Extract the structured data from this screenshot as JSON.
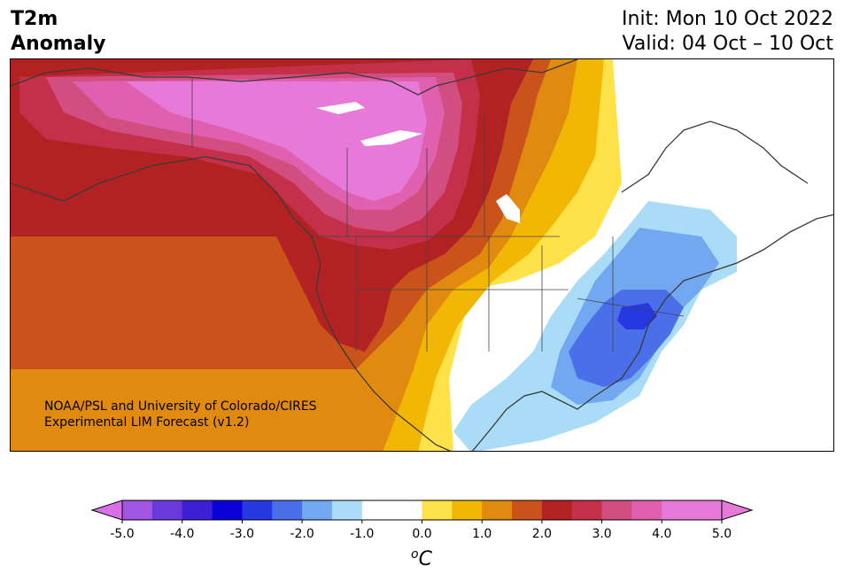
{
  "header": {
    "title_line1": "T2m",
    "title_line2": "Anomaly",
    "init_text": "Init: Mon 10 Oct 2022",
    "valid_text": "Valid: 04 Oct – 10 Oct"
  },
  "map": {
    "credit_line1": "NOAA/PSL and University of Colorado/CIRES",
    "credit_line2": "Experimental LIM Forecast (v1.2)"
  },
  "colorbar": {
    "unit_label": "°C",
    "unit_prefix": "o",
    "unit_letter": "C",
    "ticks": [
      "-5.0",
      "-4.0",
      "-3.0",
      "-2.0",
      "-1.0",
      "0.0",
      "1.0",
      "2.0",
      "3.0",
      "4.0",
      "5.0"
    ],
    "colors": {
      "minus5": "#d970e8",
      "minus45": "#a155e0",
      "minus4": "#6a3ad8",
      "minus35": "#3d1fd4",
      "minus3": "#0a00d8",
      "minus25": "#2738e0",
      "minus2": "#4a6fe8",
      "minus15": "#72a8ef",
      "minus1": "#aadcf8",
      "zero": "#ffffff",
      "plus1": "#ffe24a",
      "plus15": "#f2b705",
      "plus2": "#e08a0f",
      "plus25": "#c9531a",
      "plus3": "#b22222",
      "plus35": "#c4304a",
      "plus4": "#d24e80",
      "plus45": "#de60ae",
      "plus5": "#e77ad8"
    }
  }
}
